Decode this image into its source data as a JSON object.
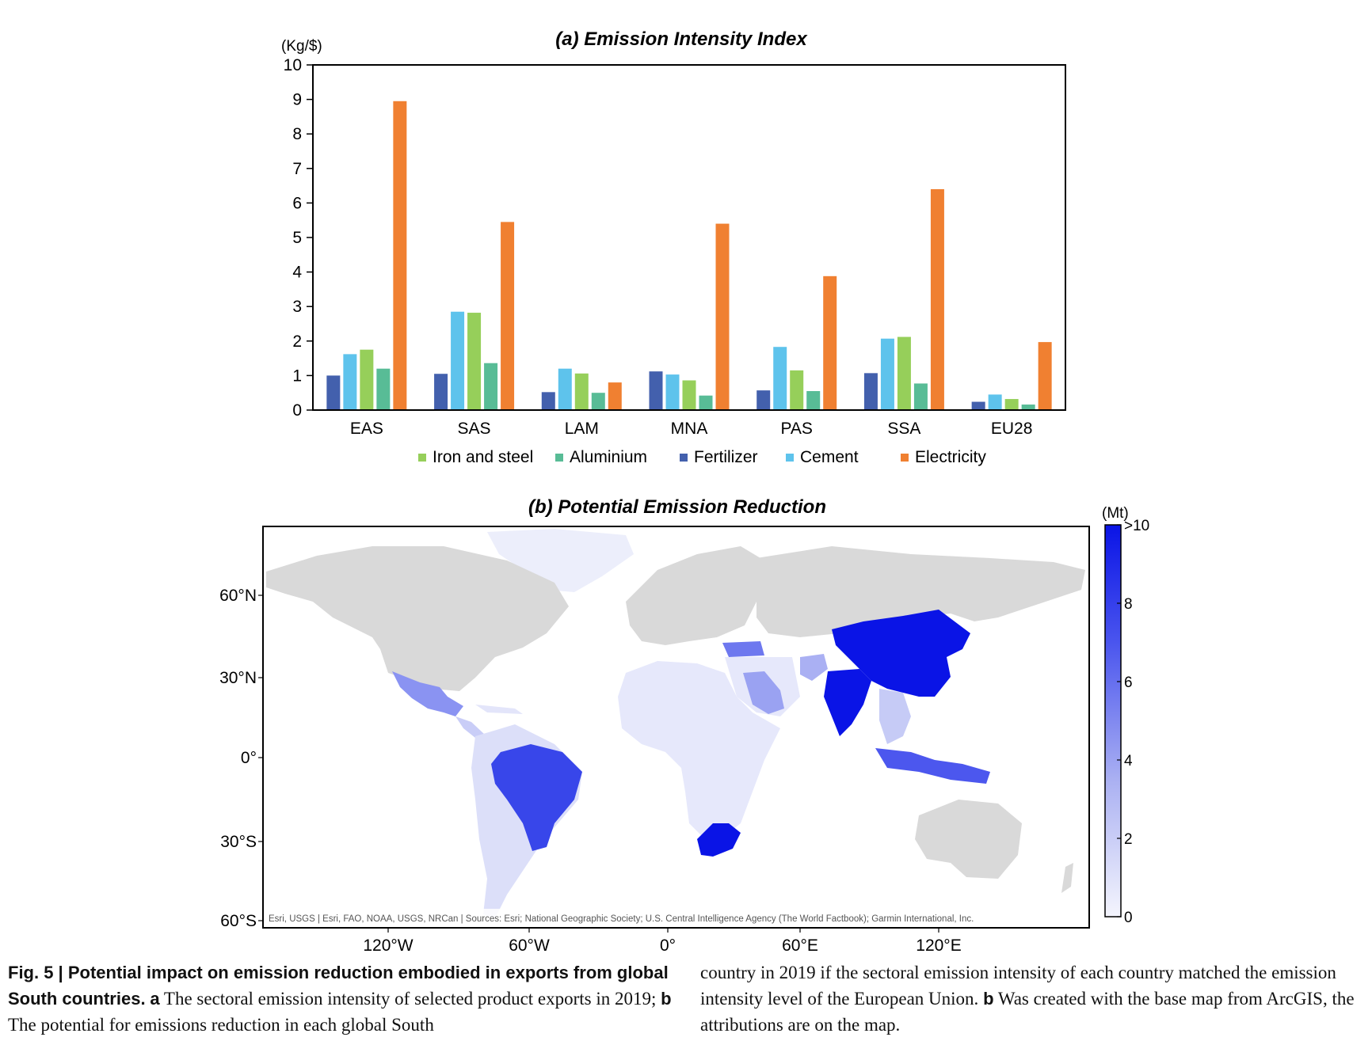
{
  "chart_data": [
    {
      "type": "bar",
      "title": "(a) Emission Intensity Index",
      "unit": "(Kg/$)",
      "categories": [
        "EAS",
        "SAS",
        "LAM",
        "MNA",
        "PAS",
        "SSA",
        "EU28"
      ],
      "ylim": [
        0,
        10
      ],
      "yticks": [
        0,
        1,
        2,
        3,
        4,
        5,
        6,
        7,
        8,
        9,
        10
      ],
      "bar_order": [
        "Fertilizer",
        "Cement",
        "Iron and steel",
        "Aluminium",
        "Electricity"
      ],
      "legend_order": [
        "Iron and steel",
        "Aluminium",
        "Fertilizer",
        "Cement",
        "Electricity"
      ],
      "legend_position": "bottom",
      "series": [
        {
          "name": "Fertilizer",
          "color": "#4360ad",
          "values": [
            1.0,
            1.05,
            0.52,
            1.12,
            0.57,
            1.07,
            0.24
          ]
        },
        {
          "name": "Cement",
          "color": "#5ec3ec",
          "values": [
            1.62,
            2.85,
            1.2,
            1.03,
            1.83,
            2.07,
            0.45
          ]
        },
        {
          "name": "Iron and steel",
          "color": "#96cf5a",
          "values": [
            1.75,
            2.82,
            1.06,
            0.86,
            1.15,
            2.12,
            0.32
          ]
        },
        {
          "name": "Aluminium",
          "color": "#58bc96",
          "values": [
            1.2,
            1.36,
            0.5,
            0.42,
            0.55,
            0.77,
            0.16
          ]
        },
        {
          "name": "Electricity",
          "color": "#f08031",
          "values": [
            8.95,
            5.45,
            0.8,
            5.4,
            3.88,
            6.4,
            1.97
          ]
        }
      ]
    },
    {
      "type": "heatmap",
      "title": "(b) Potential Emission Reduction",
      "colorbar_unit": "(Mt)",
      "colorbar_range": [
        0,
        10
      ],
      "colorbar_ticks": [
        "0",
        "2",
        "4",
        "6",
        "8",
        ">10"
      ],
      "lat_ticks": [
        "60°N",
        "30°N",
        "0°",
        "30°S",
        "60°S"
      ],
      "lon_ticks": [
        "120°W",
        "60°W",
        "0°",
        "60°E",
        "120°E"
      ],
      "attribution": "Esri, USGS | Esri, FAO, NOAA, USGS, NRCan | Sources: Esri; National Geographic Society; U.S. Central Intelligence Agency (The World Factbook); Garmin International, Inc.",
      "colors": {
        "no_data": "#d9d9d9",
        "low": "#eef0fc",
        "high": "#0a14e6"
      }
    }
  ],
  "caption": {
    "col1": {
      "bold_intro": "Fig. 5 | Potential impact on emission reduction embodied in exports from global South countries.",
      "label_a": "a",
      "text_a": "The sectoral emission intensity of selected product exports in 2019;",
      "label_b": "b",
      "text_b": "The potential for emissions reduction in each global South"
    },
    "col2": {
      "text_cont": "country in 2019 if the sectoral emission intensity of each country matched the emission intensity level of the European Union.",
      "label_b": "b",
      "text_b": "Was created with the base map from ArcGIS, the attributions are on the map."
    }
  }
}
